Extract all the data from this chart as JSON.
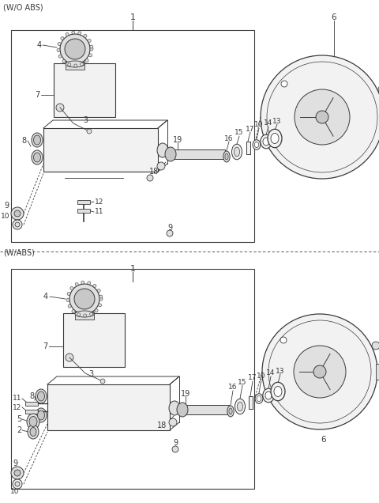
{
  "bg_color": "#ffffff",
  "line_color": "#3a3a3a",
  "section1_label": "(W/O ABS)",
  "section2_label": "(W/ABS)",
  "fig_width": 4.8,
  "fig_height": 6.36,
  "dpi": 100
}
